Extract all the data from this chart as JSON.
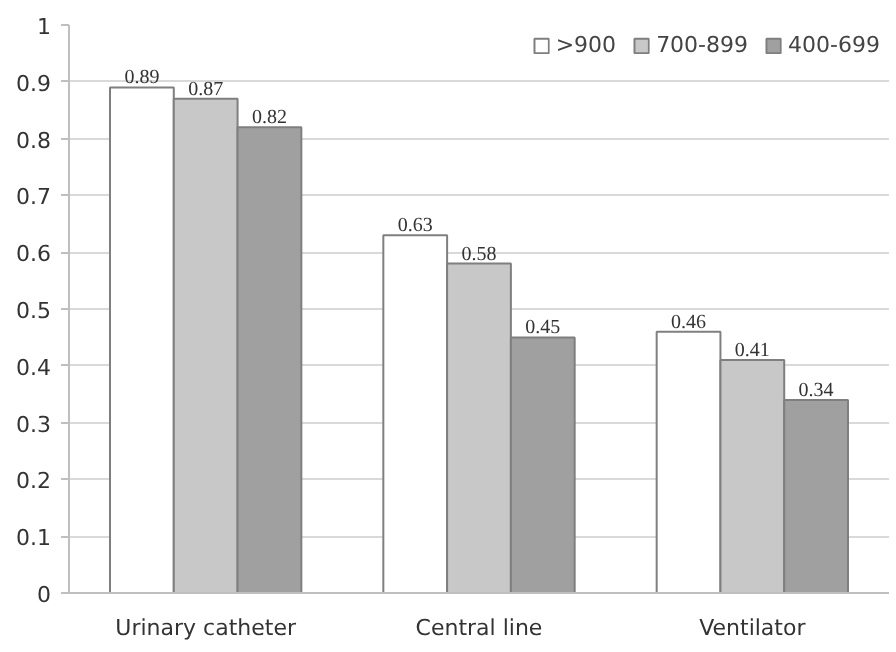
{
  "chart_data": {
    "type": "bar",
    "categories": [
      "Urinary catheter",
      "Central line",
      "Ventilator"
    ],
    "series": [
      {
        "name": ">900",
        "color": "#ffffff",
        "values": [
          0.89,
          0.63,
          0.46
        ]
      },
      {
        "name": "700-899",
        "color": "#c8c8c8",
        "values": [
          0.87,
          0.58,
          0.41
        ]
      },
      {
        "name": "400-699",
        "color": "#a0a0a0",
        "values": [
          0.82,
          0.45,
          0.34
        ]
      }
    ],
    "ylim": [
      0,
      1
    ],
    "yticks": [
      0,
      0.1,
      0.2,
      0.3,
      0.4,
      0.5,
      0.6,
      0.7,
      0.8,
      0.9,
      1
    ],
    "grid": "y",
    "legend": "top right",
    "data_labels": true
  }
}
